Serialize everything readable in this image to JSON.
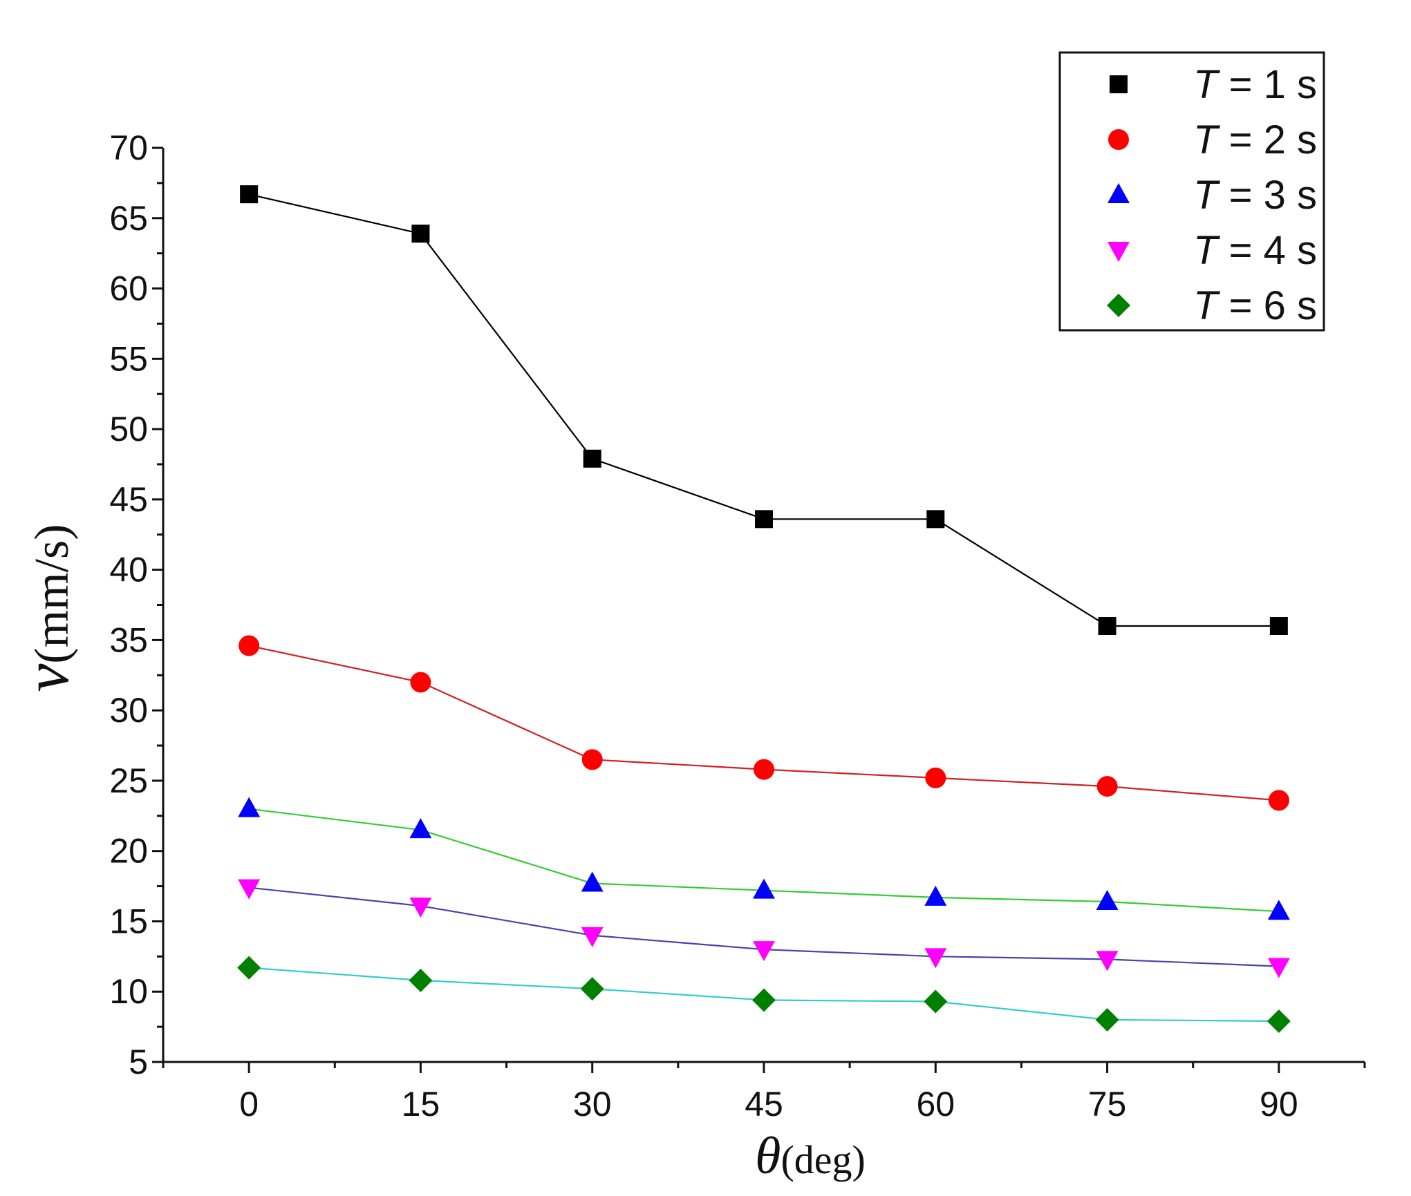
{
  "chart_data": {
    "type": "line",
    "x": [
      0,
      15,
      30,
      45,
      60,
      75,
      90
    ],
    "xlim": [
      -7.5,
      97.5
    ],
    "ylim": [
      5,
      70
    ],
    "xticks": [
      "0",
      "15",
      "30",
      "45",
      "60",
      "75",
      "90"
    ],
    "yticks": [
      "5",
      "10",
      "15",
      "20",
      "25",
      "30",
      "35",
      "40",
      "45",
      "50",
      "55",
      "60",
      "65",
      "70"
    ],
    "xlabel": {
      "symbol": "θ",
      "unit": "(deg)"
    },
    "ylabel": {
      "symbol": "v",
      "unit": "(mm/s)"
    },
    "legend_position": "top-right",
    "series": [
      {
        "name": "T = 1 s",
        "T": "T",
        "rest": " = 1 s",
        "marker": "square",
        "marker_color": "#000000",
        "line_color": "#000000",
        "values": [
          66.7,
          63.9,
          47.9,
          43.6,
          43.6,
          36.0,
          36.0
        ]
      },
      {
        "name": "T = 2 s",
        "T": "T",
        "rest": " = 2 s",
        "marker": "circle",
        "marker_color": "#ff0000",
        "line_color": "#d02020",
        "values": [
          34.6,
          32.0,
          26.5,
          25.8,
          25.2,
          24.6,
          23.6
        ]
      },
      {
        "name": "T = 3 s",
        "T": "T",
        "rest": " = 3 s",
        "marker": "triangle-up",
        "marker_color": "#0000ff",
        "line_color": "#33cc33",
        "values": [
          23.0,
          21.5,
          17.7,
          17.2,
          16.7,
          16.4,
          15.7
        ]
      },
      {
        "name": "T = 4 s",
        "T": "T",
        "rest": " = 4 s",
        "marker": "triangle-down",
        "marker_color": "#ff00ff",
        "line_color": "#4444aa",
        "values": [
          17.4,
          16.1,
          14.0,
          13.0,
          12.5,
          12.3,
          11.8
        ]
      },
      {
        "name": "T = 6 s",
        "T": "T",
        "rest": " = 6 s",
        "marker": "diamond",
        "marker_color": "#008000",
        "line_color": "#33cccc",
        "values": [
          11.7,
          10.8,
          10.2,
          9.4,
          9.3,
          8.0,
          7.9
        ]
      }
    ]
  }
}
